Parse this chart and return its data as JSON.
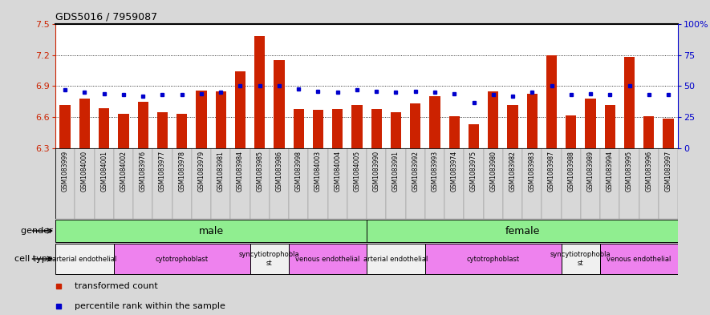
{
  "title": "GDS5016 / 7959087",
  "samples": [
    "GSM1083999",
    "GSM1084000",
    "GSM1084001",
    "GSM1084002",
    "GSM1083976",
    "GSM1083977",
    "GSM1083978",
    "GSM1083979",
    "GSM1083981",
    "GSM1083984",
    "GSM1083985",
    "GSM1083986",
    "GSM1083998",
    "GSM1084003",
    "GSM1084004",
    "GSM1084005",
    "GSM1083990",
    "GSM1083991",
    "GSM1083992",
    "GSM1083993",
    "GSM1083974",
    "GSM1083975",
    "GSM1083980",
    "GSM1083982",
    "GSM1083983",
    "GSM1083987",
    "GSM1083988",
    "GSM1083989",
    "GSM1083994",
    "GSM1083995",
    "GSM1083996",
    "GSM1083997"
  ],
  "bar_values": [
    6.72,
    6.78,
    6.69,
    6.63,
    6.75,
    6.65,
    6.63,
    6.86,
    6.85,
    7.04,
    7.38,
    7.15,
    6.68,
    6.67,
    6.68,
    6.72,
    6.68,
    6.65,
    6.73,
    6.8,
    6.61,
    6.53,
    6.85,
    6.72,
    6.83,
    7.2,
    6.62,
    6.78,
    6.72,
    7.18,
    6.61,
    6.59
  ],
  "dot_values": [
    47,
    45,
    44,
    43,
    42,
    43,
    43,
    44,
    45,
    50,
    50,
    50,
    48,
    46,
    45,
    47,
    46,
    45,
    46,
    45,
    44,
    37,
    43,
    42,
    45,
    50,
    43,
    44,
    43,
    50,
    43,
    43
  ],
  "left_ylim": [
    6.3,
    7.5
  ],
  "right_ylim": [
    0,
    100
  ],
  "left_yticks": [
    6.3,
    6.6,
    6.9,
    7.2,
    7.5
  ],
  "right_yticks": [
    0,
    25,
    50,
    75,
    100
  ],
  "right_yticklabels": [
    "0",
    "25",
    "50",
    "75",
    "100%"
  ],
  "bar_color": "#cc2200",
  "dot_color": "#0000cc",
  "fig_bg": "#d8d8d8",
  "plot_bg": "#ffffff",
  "gender_groups": [
    {
      "label": "male",
      "start": 0,
      "end": 16,
      "color": "#90ee90"
    },
    {
      "label": "female",
      "start": 16,
      "end": 32,
      "color": "#90ee90"
    }
  ],
  "cell_type_groups": [
    {
      "label": "arterial endothelial",
      "start": 0,
      "end": 3,
      "color": "#f0f0f0"
    },
    {
      "label": "cytotrophoblast",
      "start": 3,
      "end": 10,
      "color": "#ee82ee"
    },
    {
      "label": "syncytiotrophoblast",
      "start": 10,
      "end": 12,
      "color": "#f0f0f0"
    },
    {
      "label": "venous endothelial",
      "start": 12,
      "end": 16,
      "color": "#ee82ee"
    },
    {
      "label": "arterial endothelial",
      "start": 16,
      "end": 19,
      "color": "#f0f0f0"
    },
    {
      "label": "cytotrophoblast",
      "start": 19,
      "end": 26,
      "color": "#ee82ee"
    },
    {
      "label": "syncytiotrophoblast",
      "start": 26,
      "end": 28,
      "color": "#f0f0f0"
    },
    {
      "label": "venous endothelial",
      "start": 28,
      "end": 32,
      "color": "#ee82ee"
    }
  ],
  "legend": [
    {
      "label": "transformed count",
      "color": "#cc2200"
    },
    {
      "label": "percentile rank within the sample",
      "color": "#0000cc"
    }
  ],
  "grid_lines": [
    6.6,
    6.9,
    7.2
  ],
  "bar_width": 0.55
}
